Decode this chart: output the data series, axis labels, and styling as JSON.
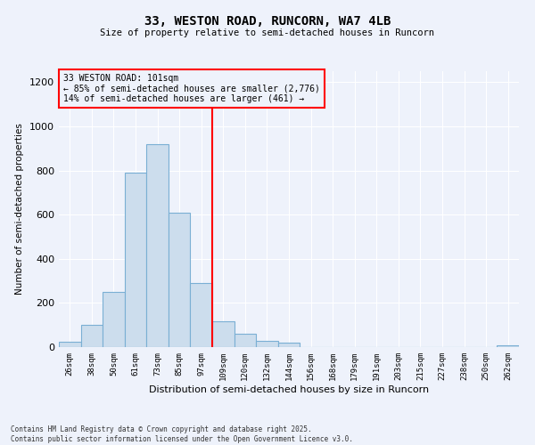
{
  "title_line1": "33, WESTON ROAD, RUNCORN, WA7 4LB",
  "title_line2": "Size of property relative to semi-detached houses in Runcorn",
  "xlabel": "Distribution of semi-detached houses by size in Runcorn",
  "ylabel": "Number of semi-detached properties",
  "categories": [
    "26sqm",
    "38sqm",
    "50sqm",
    "61sqm",
    "73sqm",
    "85sqm",
    "97sqm",
    "109sqm",
    "120sqm",
    "132sqm",
    "144sqm",
    "156sqm",
    "168sqm",
    "179sqm",
    "191sqm",
    "203sqm",
    "215sqm",
    "227sqm",
    "238sqm",
    "250sqm",
    "262sqm"
  ],
  "values": [
    25,
    100,
    250,
    790,
    920,
    610,
    290,
    115,
    60,
    30,
    20,
    0,
    0,
    0,
    0,
    0,
    0,
    0,
    0,
    0,
    10
  ],
  "bar_color": "#ccdded",
  "bar_edge_color": "#7aafd4",
  "vline_color": "red",
  "annotation_text": "33 WESTON ROAD: 101sqm\n← 85% of semi-detached houses are smaller (2,776)\n14% of semi-detached houses are larger (461) →",
  "annotation_box_color": "red",
  "ylim": [
    0,
    1250
  ],
  "yticks": [
    0,
    200,
    400,
    600,
    800,
    1000,
    1200
  ],
  "footnote": "Contains HM Land Registry data © Crown copyright and database right 2025.\nContains public sector information licensed under the Open Government Licence v3.0.",
  "background_color": "#eef2fb",
  "grid_color": "#ffffff"
}
